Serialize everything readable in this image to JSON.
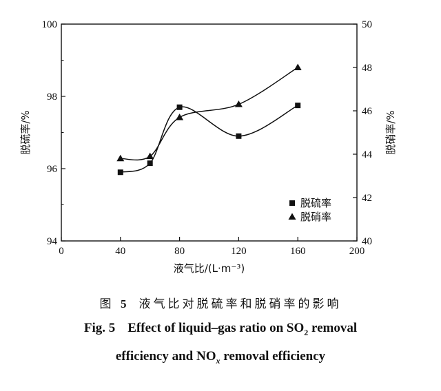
{
  "chart_data": {
    "type": "line",
    "xlabel": "液气比/(L·m⁻³)",
    "ylabel_left": "脱硫率/%",
    "ylabel_right": "脱硝率/%",
    "xlim": [
      0,
      200
    ],
    "ylim_left": [
      94,
      100
    ],
    "ylim_right": [
      40,
      50
    ],
    "xticks": [
      "0",
      "40",
      "80",
      "120",
      "160",
      "200"
    ],
    "yticks_left": [
      "94",
      "96",
      "98",
      "100"
    ],
    "yticks_right": [
      "40",
      "42",
      "44",
      "46",
      "48",
      "50"
    ],
    "legend_position": "bottom-right",
    "series": [
      {
        "name": "脱硫率",
        "marker": "square",
        "axis": "left",
        "x": [
          40,
          60,
          80,
          120,
          160
        ],
        "y": [
          95.9,
          96.15,
          97.7,
          96.9,
          97.75
        ]
      },
      {
        "name": "脱硝率",
        "marker": "triangle",
        "axis": "right",
        "x": [
          40,
          60,
          80,
          120,
          160
        ],
        "y": [
          43.8,
          43.9,
          45.7,
          46.3,
          48.0
        ]
      }
    ]
  },
  "caption": {
    "cn_prefix": "图",
    "cn_number": "5",
    "cn_text": "液气比对脱硫率和脱硝率的影响",
    "en_prefix": "Fig. 5",
    "en_line1": "Effect of liquid–gas ratio on SO",
    "en_line1_sub": "2",
    "en_line1_end": " removal",
    "en_line2": "efficiency and NO",
    "en_line2_sub": "x",
    "en_line2_end": " removal efficiency"
  }
}
